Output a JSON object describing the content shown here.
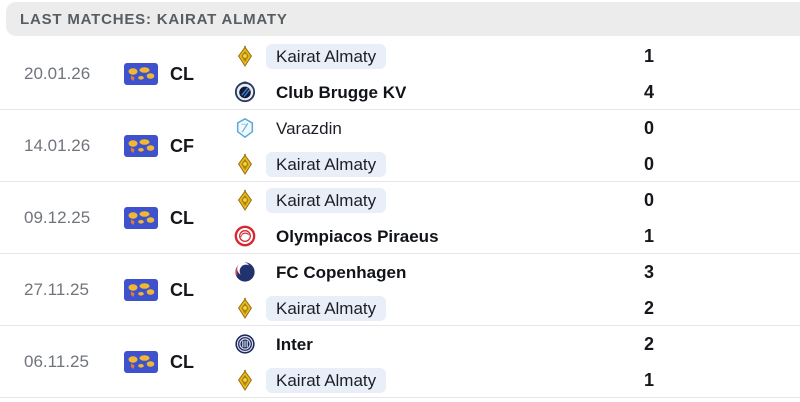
{
  "header": {
    "title": "LAST MATCHES: KAIRAT ALMATY"
  },
  "matches": [
    {
      "date": "20.01.26",
      "competition": "CL",
      "competition_icon": "world-flag-icon",
      "teams": [
        {
          "name": "Kairat Almaty",
          "score": "1",
          "logo": "kairat-almaty-logo",
          "highlighted": true,
          "winner": false
        },
        {
          "name": "Club Brugge KV",
          "score": "4",
          "logo": "club-brugge-logo",
          "highlighted": false,
          "winner": true
        }
      ]
    },
    {
      "date": "14.01.26",
      "competition": "CF",
      "competition_icon": "world-flag-icon",
      "teams": [
        {
          "name": "Varazdin",
          "score": "0",
          "logo": "varazdin-logo",
          "highlighted": false,
          "winner": false
        },
        {
          "name": "Kairat Almaty",
          "score": "0",
          "logo": "kairat-almaty-logo",
          "highlighted": true,
          "winner": false
        }
      ]
    },
    {
      "date": "09.12.25",
      "competition": "CL",
      "competition_icon": "world-flag-icon",
      "teams": [
        {
          "name": "Kairat Almaty",
          "score": "0",
          "logo": "kairat-almaty-logo",
          "highlighted": true,
          "winner": false
        },
        {
          "name": "Olympiacos Piraeus",
          "score": "1",
          "logo": "olympiacos-logo",
          "highlighted": false,
          "winner": true
        }
      ]
    },
    {
      "date": "27.11.25",
      "competition": "CL",
      "competition_icon": "world-flag-icon",
      "teams": [
        {
          "name": "FC Copenhagen",
          "score": "3",
          "logo": "fc-copenhagen-logo",
          "highlighted": false,
          "winner": true
        },
        {
          "name": "Kairat Almaty",
          "score": "2",
          "logo": "kairat-almaty-logo",
          "highlighted": true,
          "winner": false
        }
      ]
    },
    {
      "date": "06.11.25",
      "competition": "CL",
      "competition_icon": "world-flag-icon",
      "teams": [
        {
          "name": "Inter",
          "score": "2",
          "logo": "inter-logo",
          "highlighted": false,
          "winner": true
        },
        {
          "name": "Kairat Almaty",
          "score": "1",
          "logo": "kairat-almaty-logo",
          "highlighted": true,
          "winner": false
        }
      ]
    }
  ],
  "colors": {
    "header_bg": "#ececec",
    "highlight_bg": "#e9eff9",
    "separator": "#e7e7ea",
    "flag_blue": "#3d52cc",
    "flag_map_yellow": "#f2b632",
    "kairat_gold": "#eab71c",
    "winner_text": "#101318",
    "date_text": "#70757d"
  }
}
